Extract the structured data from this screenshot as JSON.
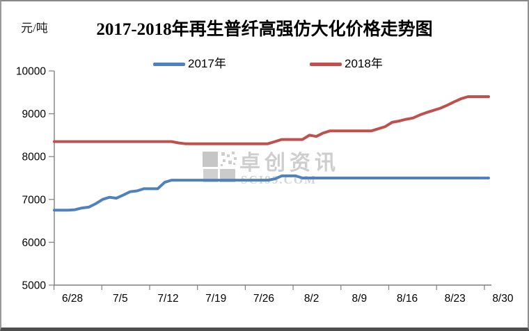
{
  "frame": {
    "unit_label": "元/吨",
    "title": "2017-2018年再生普纤高强仿大化价格走势图"
  },
  "legend": [
    {
      "label": "2017年",
      "color": "#4F81BD"
    },
    {
      "label": "2018年",
      "color": "#C0504D"
    }
  ],
  "watermark": {
    "text": "卓创资讯",
    "subtext": "SCI99.COM"
  },
  "colors": {
    "series_2017": "#4F81BD",
    "series_2018": "#C0504D",
    "axis": "#7f7f7f",
    "watermark_gray": "#c6c6c6"
  },
  "chart_data": {
    "type": "line",
    "title": "2017-2018年再生普纤高强仿大化价格走势图",
    "xlabel": "",
    "ylabel": "元/吨",
    "ylim": [
      5000,
      10000
    ],
    "yticks": [
      5000,
      6000,
      7000,
      8000,
      9000,
      10000
    ],
    "x_tick_labels": [
      "6/28",
      "7/5",
      "7/12",
      "7/19",
      "7/26",
      "8/2",
      "8/9",
      "8/16",
      "8/23",
      "8/30"
    ],
    "grid": false,
    "legend_position": "top",
    "x": [
      "6/28",
      "6/29",
      "6/30",
      "7/1",
      "7/2",
      "7/3",
      "7/4",
      "7/5",
      "7/6",
      "7/7",
      "7/8",
      "7/9",
      "7/10",
      "7/11",
      "7/12",
      "7/13",
      "7/14",
      "7/15",
      "7/16",
      "7/17",
      "7/18",
      "7/19",
      "7/20",
      "7/21",
      "7/22",
      "7/23",
      "7/24",
      "7/25",
      "7/26",
      "7/27",
      "7/28",
      "7/29",
      "7/30",
      "7/31",
      "8/1",
      "8/2",
      "8/3",
      "8/4",
      "8/5",
      "8/6",
      "8/7",
      "8/8",
      "8/9",
      "8/10",
      "8/11",
      "8/12",
      "8/13",
      "8/14",
      "8/15",
      "8/16",
      "8/17",
      "8/18",
      "8/19",
      "8/20",
      "8/21",
      "8/22",
      "8/23",
      "8/24",
      "8/25",
      "8/26",
      "8/27",
      "8/28",
      "8/29",
      "8/30"
    ],
    "series": [
      {
        "name": "2017年",
        "color": "#4F81BD",
        "values": [
          6750,
          6750,
          6750,
          6760,
          6800,
          6820,
          6900,
          7000,
          7050,
          7030,
          7100,
          7180,
          7200,
          7250,
          7250,
          7250,
          7400,
          7450,
          7450,
          7450,
          7450,
          7450,
          7450,
          7450,
          7450,
          7450,
          7450,
          7450,
          7450,
          7450,
          7450,
          7450,
          7480,
          7550,
          7550,
          7550,
          7500,
          7500,
          7500,
          7500,
          7500,
          7500,
          7500,
          7500,
          7500,
          7500,
          7500,
          7500,
          7500,
          7500,
          7500,
          7500,
          7500,
          7500,
          7500,
          7500,
          7500,
          7500,
          7500,
          7500,
          7500,
          7500,
          7500,
          7500
        ]
      },
      {
        "name": "2018年",
        "color": "#C0504D",
        "values": [
          8350,
          8350,
          8350,
          8350,
          8350,
          8350,
          8350,
          8350,
          8350,
          8350,
          8350,
          8350,
          8350,
          8350,
          8350,
          8350,
          8350,
          8350,
          8320,
          8300,
          8300,
          8300,
          8300,
          8300,
          8300,
          8300,
          8300,
          8300,
          8300,
          8300,
          8300,
          8300,
          8350,
          8400,
          8400,
          8400,
          8400,
          8500,
          8470,
          8550,
          8600,
          8600,
          8600,
          8600,
          8600,
          8600,
          8600,
          8650,
          8700,
          8800,
          8830,
          8870,
          8900,
          8970,
          9030,
          9080,
          9130,
          9200,
          9280,
          9350,
          9400,
          9400,
          9400,
          9400
        ]
      }
    ]
  }
}
